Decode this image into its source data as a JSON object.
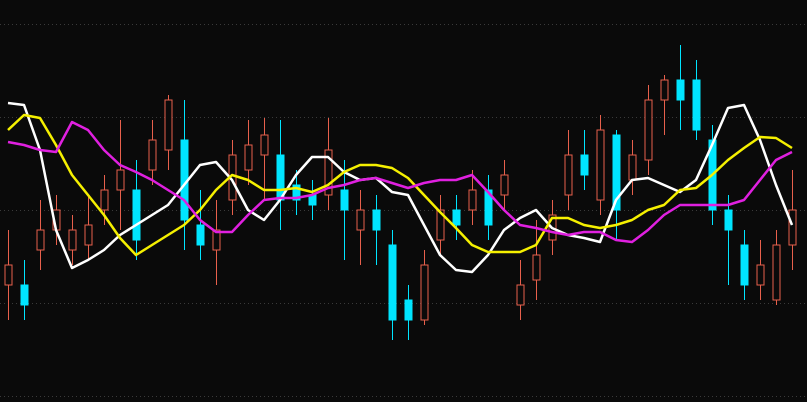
{
  "chart_data": {
    "type": "candlestick",
    "up_color": "#e8604c",
    "down_color": "#00e5ff",
    "ylim": [
      0,
      402
    ],
    "yticks": [
      6,
      99,
      192,
      285,
      378
    ],
    "grid": true,
    "open": [
      117,
      117,
      152,
      172,
      152,
      157,
      192,
      212,
      212,
      232,
      252,
      262,
      177,
      152,
      202,
      232,
      247,
      247,
      217,
      207,
      207,
      212,
      172,
      192,
      157,
      102,
      82,
      162,
      192,
      192,
      212,
      207,
      97,
      122,
      162,
      207,
      247,
      202,
      267,
      222,
      242,
      302,
      322,
      322,
      262,
      192,
      157,
      117,
      102,
      157
    ],
    "high": [
      172,
      142,
      202,
      207,
      187,
      207,
      227,
      282,
      242,
      282,
      307,
      302,
      212,
      202,
      262,
      282,
      284,
      282,
      232,
      222,
      284,
      242,
      212,
      207,
      172,
      117,
      152,
      207,
      207,
      232,
      227,
      242,
      142,
      182,
      202,
      272,
      272,
      287,
      272,
      262,
      317,
      327,
      357,
      342,
      277,
      207,
      172,
      162,
      172,
      232
    ],
    "low": [
      82,
      82,
      132,
      157,
      137,
      142,
      177,
      172,
      142,
      217,
      232,
      152,
      142,
      117,
      187,
      217,
      202,
      172,
      187,
      182,
      192,
      142,
      137,
      137,
      62,
      62,
      77,
      147,
      162,
      177,
      162,
      192,
      82,
      102,
      147,
      192,
      212,
      187,
      162,
      207,
      227,
      267,
      272,
      262,
      177,
      117,
      102,
      102,
      97,
      132
    ],
    "close": [
      137,
      97,
      172,
      192,
      172,
      177,
      212,
      232,
      162,
      262,
      302,
      182,
      157,
      172,
      247,
      257,
      267,
      202,
      202,
      197,
      252,
      192,
      192,
      172,
      82,
      82,
      137,
      192,
      177,
      212,
      177,
      227,
      117,
      147,
      187,
      247,
      227,
      272,
      192,
      247,
      302,
      322,
      302,
      272,
      192,
      172,
      117,
      137,
      157,
      192
    ],
    "lines": [
      {
        "color": "#ffffff",
        "values": [
          299,
          297,
          252,
          172,
          134,
          142,
          152,
          167,
          177,
          187,
          197,
          217,
          237,
          240,
          222,
          192,
          182,
          202,
          227,
          245,
          245,
          230,
          222,
          224,
          210,
          207,
          177,
          147,
          132,
          130,
          147,
          172,
          184,
          192,
          174,
          167,
          164,
          160,
          202,
          222,
          224,
          217,
          210,
          222,
          257,
          294,
          297,
          262,
          217,
          177
        ]
      },
      {
        "color": "#f5f000",
        "values": [
          272,
          287,
          284,
          257,
          227,
          207,
          187,
          164,
          147,
          157,
          167,
          177,
          192,
          212,
          227,
          222,
          212,
          212,
          214,
          210,
          217,
          230,
          237,
          237,
          234,
          224,
          207,
          190,
          174,
          157,
          150,
          150,
          150,
          157,
          184,
          184,
          177,
          174,
          177,
          182,
          192,
          197,
          212,
          214,
          227,
          242,
          254,
          265,
          264,
          254
        ]
      },
      {
        "color": "#e020e0",
        "values": [
          260,
          257,
          252,
          250,
          280,
          272,
          252,
          237,
          230,
          222,
          212,
          202,
          182,
          170,
          170,
          187,
          202,
          204,
          204,
          207,
          214,
          217,
          222,
          224,
          219,
          214,
          219,
          222,
          222,
          227,
          210,
          192,
          177,
          174,
          170,
          167,
          170,
          170,
          162,
          160,
          172,
          187,
          197,
          197,
          197,
          197,
          202,
          222,
          242,
          250
        ]
      }
    ]
  }
}
